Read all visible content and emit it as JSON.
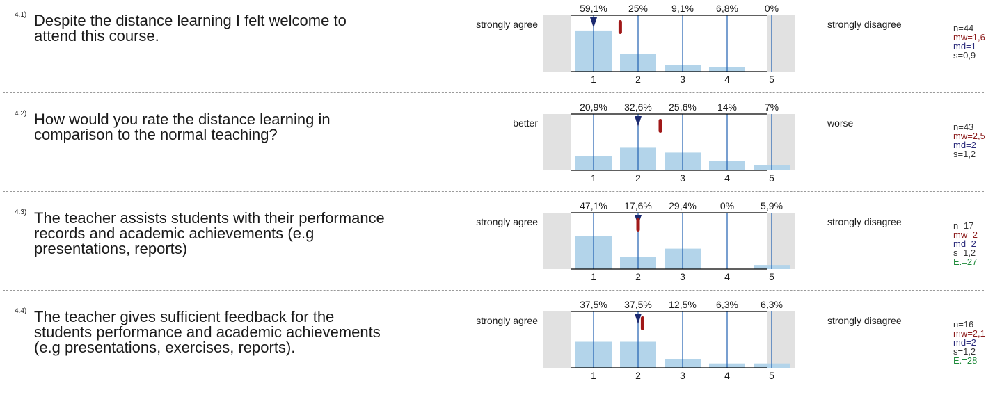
{
  "chart_data": [
    {
      "type": "bar",
      "number": "4.1)",
      "question": [
        "Despite the distance learning I felt welcome to",
        "attend this course."
      ],
      "left_label": "strongly agree",
      "right_label": "strongly disagree",
      "categories": [
        "1",
        "2",
        "3",
        "4",
        "5"
      ],
      "percent_labels": [
        "59,1%",
        "25%",
        "9,1%",
        "6,8%",
        "0%"
      ],
      "values": [
        59.1,
        25,
        9.1,
        6.8,
        0
      ],
      "mean": 1.6,
      "median": 1,
      "stats": {
        "n": "n=44",
        "mw": "mw=1,6",
        "md": "md=1",
        "s": "s=0,9"
      }
    },
    {
      "type": "bar",
      "number": "4.2)",
      "question": [
        "How would you rate the distance learning in",
        "comparison to the normal teaching?"
      ],
      "left_label": "better",
      "right_label": "worse",
      "categories": [
        "1",
        "2",
        "3",
        "4",
        "5"
      ],
      "percent_labels": [
        "20,9%",
        "32,6%",
        "25,6%",
        "14%",
        "7%"
      ],
      "values": [
        20.9,
        32.6,
        25.6,
        14,
        7
      ],
      "mean": 2.5,
      "median": 2,
      "stats": {
        "n": "n=43",
        "mw": "mw=2,5",
        "md": "md=2",
        "s": "s=1,2"
      }
    },
    {
      "type": "bar",
      "number": "4.3)",
      "question": [
        "The teacher assists students with their performance",
        "records and academic achievements (e.g",
        "presentations, reports)"
      ],
      "left_label": "strongly agree",
      "right_label": "strongly disagree",
      "categories": [
        "1",
        "2",
        "3",
        "4",
        "5"
      ],
      "percent_labels": [
        "47,1%",
        "17,6%",
        "29,4%",
        "0%",
        "5,9%"
      ],
      "values": [
        47.1,
        17.6,
        29.4,
        0,
        5.9
      ],
      "mean": 2,
      "median": 2,
      "stats": {
        "n": "n=17",
        "mw": "mw=2",
        "md": "md=2",
        "s": "s=1,2",
        "e": "E.=27"
      }
    },
    {
      "type": "bar",
      "number": "4.4)",
      "question": [
        "The teacher gives sufficient feedback for the",
        "students performance and academic achievements",
        "(e.g presentations, exercises, reports)."
      ],
      "left_label": "strongly agree",
      "right_label": "strongly disagree",
      "categories": [
        "1",
        "2",
        "3",
        "4",
        "5"
      ],
      "percent_labels": [
        "37,5%",
        "37,5%",
        "12,5%",
        "6,3%",
        "6,3%"
      ],
      "values": [
        37.5,
        37.5,
        12.5,
        6.3,
        6.3
      ],
      "mean": 2.1,
      "median": 2,
      "stats": {
        "n": "n=16",
        "mw": "mw=2,1",
        "md": "md=2",
        "s": "s=1,2",
        "e": "E.=28"
      }
    }
  ],
  "colors": {
    "bar": "#b3d4ea",
    "gridline": "#1f5fb0",
    "axis": "#000000",
    "side_box": "#e1e1e1",
    "median_marker": "#1c2a70",
    "mean_marker": "#a01818"
  }
}
